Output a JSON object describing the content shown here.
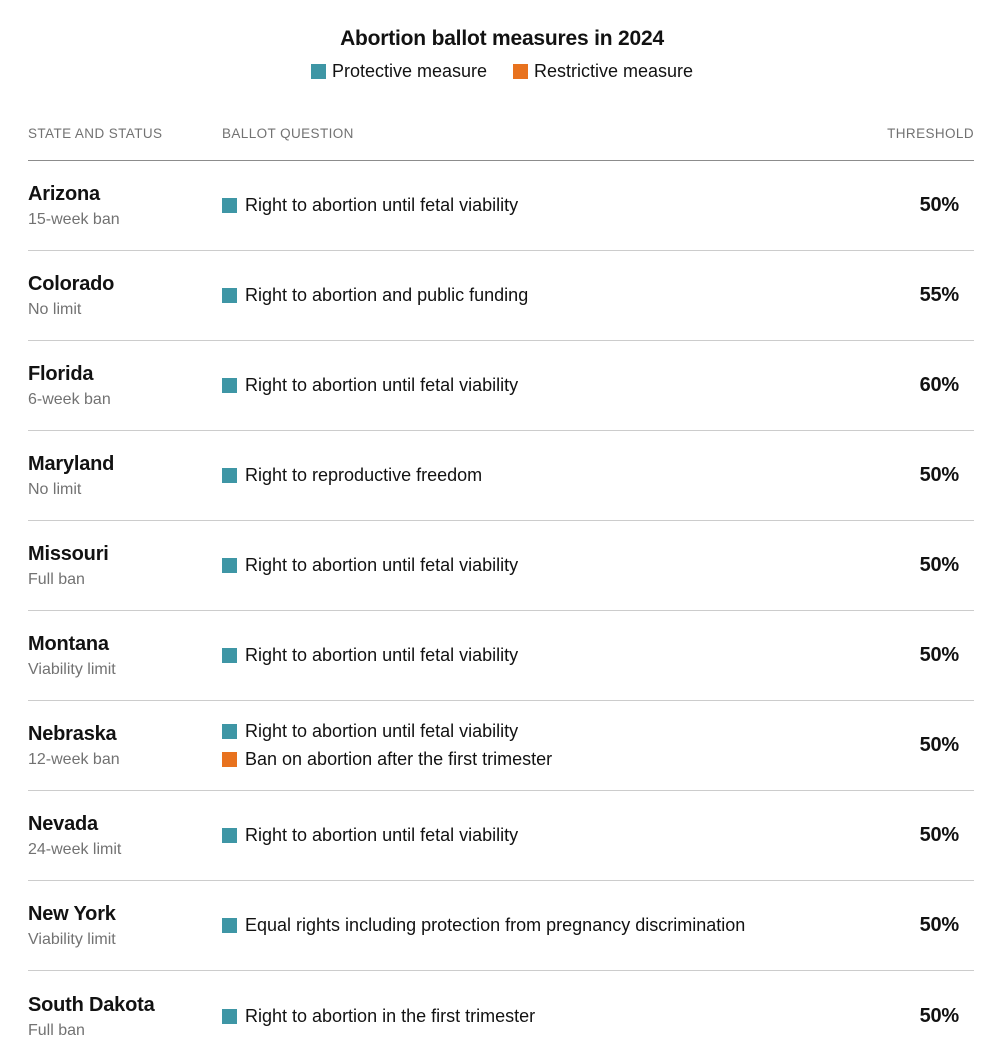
{
  "chart_data": {
    "type": "table",
    "title": "Abortion ballot measures in 2024",
    "legend": [
      {
        "label": "Protective measure",
        "type": "protective"
      },
      {
        "label": "Restrictive measure",
        "type": "restrictive"
      }
    ],
    "colors": {
      "protective": "#3e96a5",
      "restrictive": "#e8721e"
    },
    "columns": {
      "state": "STATE AND STATUS",
      "question": "BALLOT QUESTION",
      "threshold": "THRESHOLD"
    },
    "rows": [
      {
        "state": "Arizona",
        "status": "15-week ban",
        "measures": [
          {
            "type": "protective",
            "text": "Right to abortion until fetal viability"
          }
        ],
        "threshold": "50%"
      },
      {
        "state": "Colorado",
        "status": "No limit",
        "measures": [
          {
            "type": "protective",
            "text": "Right to abortion and public funding"
          }
        ],
        "threshold": "55%"
      },
      {
        "state": "Florida",
        "status": "6-week ban",
        "measures": [
          {
            "type": "protective",
            "text": "Right to abortion until fetal viability"
          }
        ],
        "threshold": "60%"
      },
      {
        "state": "Maryland",
        "status": "No limit",
        "measures": [
          {
            "type": "protective",
            "text": "Right to reproductive freedom"
          }
        ],
        "threshold": "50%"
      },
      {
        "state": "Missouri",
        "status": "Full ban",
        "measures": [
          {
            "type": "protective",
            "text": "Right to abortion until fetal viability"
          }
        ],
        "threshold": "50%"
      },
      {
        "state": "Montana",
        "status": "Viability limit",
        "measures": [
          {
            "type": "protective",
            "text": "Right to abortion until fetal viability"
          }
        ],
        "threshold": "50%"
      },
      {
        "state": "Nebraska",
        "status": "12-week ban",
        "measures": [
          {
            "type": "protective",
            "text": "Right to abortion until fetal viability"
          },
          {
            "type": "restrictive",
            "text": "Ban on abortion after the first trimester"
          }
        ],
        "threshold": "50%"
      },
      {
        "state": "Nevada",
        "status": "24-week limit",
        "measures": [
          {
            "type": "protective",
            "text": "Right to abortion until fetal viability"
          }
        ],
        "threshold": "50%"
      },
      {
        "state": "New York",
        "status": "Viability limit",
        "measures": [
          {
            "type": "protective",
            "text": "Equal rights including protection from pregnancy discrimination"
          }
        ],
        "threshold": "50%"
      },
      {
        "state": "South Dakota",
        "status": "Full ban",
        "measures": [
          {
            "type": "protective",
            "text": "Right to abortion in the first trimester"
          }
        ],
        "threshold": "50%"
      }
    ]
  }
}
